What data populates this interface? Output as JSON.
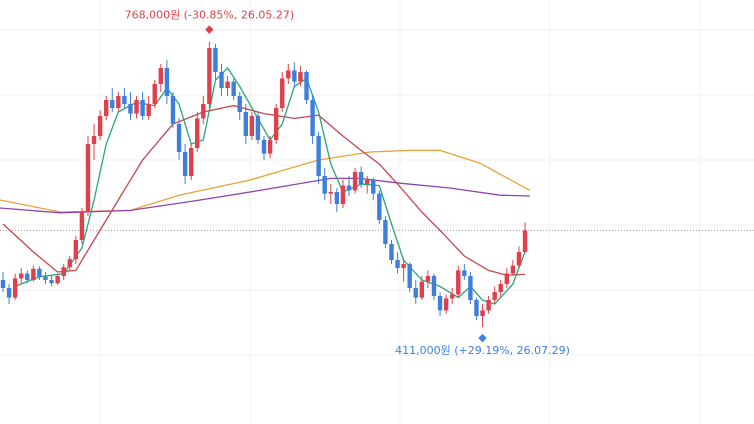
{
  "chart_data": {
    "type": "candlestick",
    "ylim": [
      290000,
      820000
    ],
    "up_color": "#e0404c",
    "down_color": "#3d7fdc",
    "high_annotation": "768,000원 (-30.85%, 26.05.27)",
    "low_annotation": "411,000원 (+29.19%, 26.07.29)",
    "ohlc": [
      [
        470000,
        480000,
        455000,
        460000
      ],
      [
        460000,
        465000,
        440000,
        448000
      ],
      [
        448000,
        478000,
        445000,
        472000
      ],
      [
        472000,
        485000,
        465000,
        478000
      ],
      [
        478000,
        482000,
        466000,
        470000
      ],
      [
        470000,
        488000,
        468000,
        484000
      ],
      [
        484000,
        487000,
        470000,
        474000
      ],
      [
        474000,
        480000,
        465000,
        470000
      ],
      [
        470000,
        476000,
        462000,
        466000
      ],
      [
        466000,
        478000,
        464000,
        475000
      ],
      [
        475000,
        490000,
        470000,
        486000
      ],
      [
        486000,
        500000,
        482000,
        496000
      ],
      [
        496000,
        525000,
        490000,
        520000
      ],
      [
        520000,
        560000,
        515000,
        555000
      ],
      [
        555000,
        650000,
        550000,
        640000
      ],
      [
        640000,
        665000,
        620000,
        650000
      ],
      [
        650000,
        682000,
        645000,
        675000
      ],
      [
        675000,
        700000,
        670000,
        695000
      ],
      [
        695000,
        710000,
        680000,
        685000
      ],
      [
        685000,
        705000,
        680000,
        700000
      ],
      [
        700000,
        710000,
        685000,
        690000
      ],
      [
        690000,
        705000,
        670000,
        678000
      ],
      [
        678000,
        700000,
        672000,
        695000
      ],
      [
        695000,
        705000,
        670000,
        675000
      ],
      [
        675000,
        700000,
        670000,
        690000
      ],
      [
        690000,
        720000,
        685000,
        715000
      ],
      [
        715000,
        740000,
        705000,
        735000
      ],
      [
        735000,
        745000,
        690000,
        700000
      ],
      [
        700000,
        705000,
        660000,
        665000
      ],
      [
        665000,
        672000,
        620000,
        630000
      ],
      [
        630000,
        640000,
        590000,
        600000
      ],
      [
        600000,
        640000,
        595000,
        635000
      ],
      [
        635000,
        680000,
        630000,
        672000
      ],
      [
        672000,
        700000,
        665000,
        690000
      ],
      [
        690000,
        768000,
        685000,
        760000
      ],
      [
        760000,
        765000,
        720000,
        730000
      ],
      [
        730000,
        740000,
        700000,
        710000
      ],
      [
        710000,
        725000,
        700000,
        718000
      ],
      [
        718000,
        722000,
        695000,
        700000
      ],
      [
        700000,
        705000,
        670000,
        680000
      ],
      [
        680000,
        690000,
        640000,
        650000
      ],
      [
        650000,
        680000,
        645000,
        675000
      ],
      [
        675000,
        680000,
        640000,
        645000
      ],
      [
        645000,
        650000,
        620000,
        628000
      ],
      [
        628000,
        650000,
        622000,
        645000
      ],
      [
        645000,
        690000,
        640000,
        685000
      ],
      [
        685000,
        730000,
        680000,
        722000
      ],
      [
        722000,
        740000,
        715000,
        732000
      ],
      [
        732000,
        742000,
        710000,
        718000
      ],
      [
        718000,
        738000,
        712000,
        730000
      ],
      [
        730000,
        732000,
        690000,
        695000
      ],
      [
        695000,
        702000,
        640000,
        650000
      ],
      [
        650000,
        655000,
        590000,
        600000
      ],
      [
        600000,
        610000,
        570000,
        578000
      ],
      [
        578000,
        590000,
        565000,
        580000
      ],
      [
        580000,
        585000,
        555000,
        565000
      ],
      [
        565000,
        595000,
        560000,
        588000
      ],
      [
        588000,
        600000,
        575000,
        582000
      ],
      [
        582000,
        610000,
        578000,
        605000
      ],
      [
        605000,
        612000,
        585000,
        590000
      ],
      [
        590000,
        600000,
        578000,
        595000
      ],
      [
        595000,
        598000,
        570000,
        578000
      ],
      [
        578000,
        582000,
        540000,
        545000
      ],
      [
        545000,
        550000,
        510000,
        515000
      ],
      [
        515000,
        520000,
        490000,
        495000
      ],
      [
        495000,
        505000,
        478000,
        485000
      ],
      [
        485000,
        495000,
        468000,
        490000
      ],
      [
        490000,
        492000,
        455000,
        460000
      ],
      [
        460000,
        470000,
        440000,
        448000
      ],
      [
        448000,
        475000,
        445000,
        468000
      ],
      [
        468000,
        482000,
        460000,
        475000
      ],
      [
        475000,
        478000,
        445000,
        450000
      ],
      [
        450000,
        455000,
        425000,
        432000
      ],
      [
        432000,
        452000,
        428000,
        447000
      ],
      [
        447000,
        460000,
        440000,
        452000
      ],
      [
        452000,
        488000,
        448000,
        482000
      ],
      [
        482000,
        490000,
        470000,
        475000
      ],
      [
        475000,
        480000,
        440000,
        445000
      ],
      [
        445000,
        448000,
        420000,
        425000
      ],
      [
        425000,
        440000,
        411000,
        432000
      ],
      [
        432000,
        450000,
        428000,
        445000
      ],
      [
        445000,
        462000,
        440000,
        455000
      ],
      [
        455000,
        470000,
        448000,
        465000
      ],
      [
        465000,
        485000,
        460000,
        478000
      ],
      [
        478000,
        495000,
        475000,
        488000
      ],
      [
        488000,
        512000,
        485000,
        505000
      ],
      [
        505000,
        542000,
        503000,
        532000
      ]
    ],
    "series": [
      {
        "color": "#e8a23a",
        "x": [
          -0.5,
          9.4,
          21,
          29,
          40.7,
          52,
          60.5,
          67,
          72,
          78.6,
          86.8
        ],
        "values": [
          570000,
          555000,
          557000,
          576000,
          595000,
          620000,
          630000,
          632000,
          632000,
          616000,
          582000
        ]
      },
      {
        "color": "#8e44ad",
        "x": [
          -0.5,
          9.4,
          21,
          32.5,
          42.3,
          54,
          58.8,
          65.4,
          73.6,
          81.9,
          86.8
        ],
        "values": [
          560000,
          554000,
          557000,
          570000,
          582000,
          597000,
          597000,
          591000,
          585000,
          576000,
          575000
        ]
      },
      {
        "color": "#c8454d",
        "x": [
          0,
          5,
          9,
          12,
          15,
          19,
          23,
          28,
          33,
          38,
          43,
          48,
          52,
          56,
          59,
          62,
          65,
          69,
          72,
          76,
          80,
          83,
          86
        ],
        "values": [
          540000,
          505000,
          480000,
          482000,
          520000,
          570000,
          620000,
          665000,
          680000,
          688000,
          678000,
          672000,
          676000,
          650000,
          632000,
          615000,
          590000,
          555000,
          532000,
          500000,
          482000,
          476000,
          477000
        ]
      },
      {
        "color": "#2aa57a",
        "x": [
          2,
          6,
          10,
          13,
          15,
          17,
          19,
          22,
          25,
          27,
          29,
          31,
          33,
          35,
          37,
          39,
          42,
          44,
          46,
          48,
          50,
          52,
          54,
          56,
          59,
          62,
          64,
          66,
          69,
          72,
          75,
          77,
          79,
          81,
          84,
          86
        ],
        "values": [
          462000,
          474000,
          478000,
          510000,
          570000,
          640000,
          680000,
          692000,
          688000,
          710000,
          690000,
          640000,
          645000,
          720000,
          735000,
          712000,
          672000,
          645000,
          665000,
          712000,
          722000,
          680000,
          615000,
          580000,
          590000,
          588000,
          540000,
          495000,
          470000,
          462000,
          448000,
          462000,
          445000,
          440000,
          465000,
          505000
        ]
      }
    ]
  }
}
